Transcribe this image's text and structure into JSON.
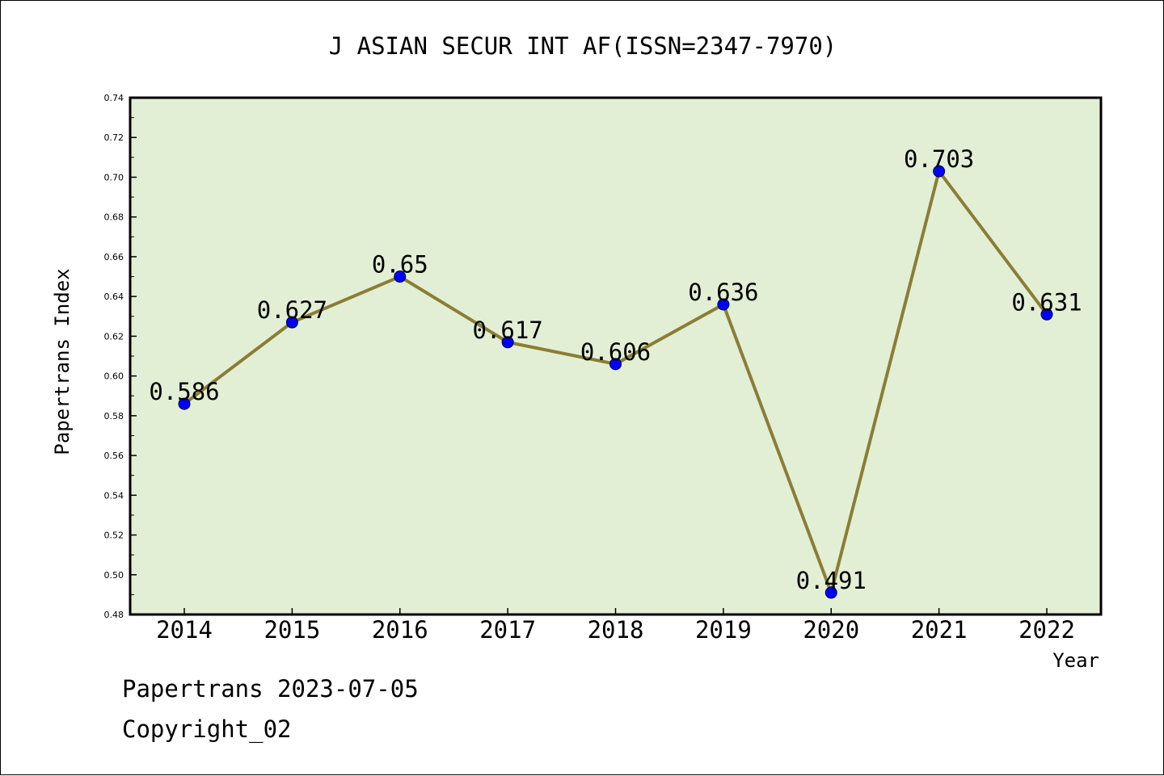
{
  "chart_data": {
    "type": "line",
    "title": "J ASIAN SECUR INT AF(ISSN=2347-7970)",
    "xlabel": "Year",
    "ylabel": "Papertrans Index",
    "categories": [
      "2014",
      "2015",
      "2016",
      "2017",
      "2018",
      "2019",
      "2020",
      "2021",
      "2022"
    ],
    "values": [
      0.586,
      0.627,
      0.65,
      0.617,
      0.606,
      0.636,
      0.491,
      0.703,
      0.631
    ],
    "data_labels": [
      "0.586",
      "0.627",
      "0.65",
      "0.617",
      "0.606",
      "0.636",
      "0.491",
      "0.703",
      "0.631"
    ],
    "ylim": [
      0.48,
      0.74
    ],
    "yticks": [
      "0.48",
      "0.50",
      "0.52",
      "0.54",
      "0.56",
      "0.58",
      "0.60",
      "0.62",
      "0.64",
      "0.66",
      "0.68",
      "0.70",
      "0.72",
      "0.74"
    ],
    "grid": false,
    "colors": {
      "plot_background": "#e2efd5",
      "line": "#8b7d35",
      "marker": "#0000ff"
    }
  },
  "footer": {
    "line1": "Papertrans 2023-07-05",
    "line2": "Copyright_02"
  }
}
